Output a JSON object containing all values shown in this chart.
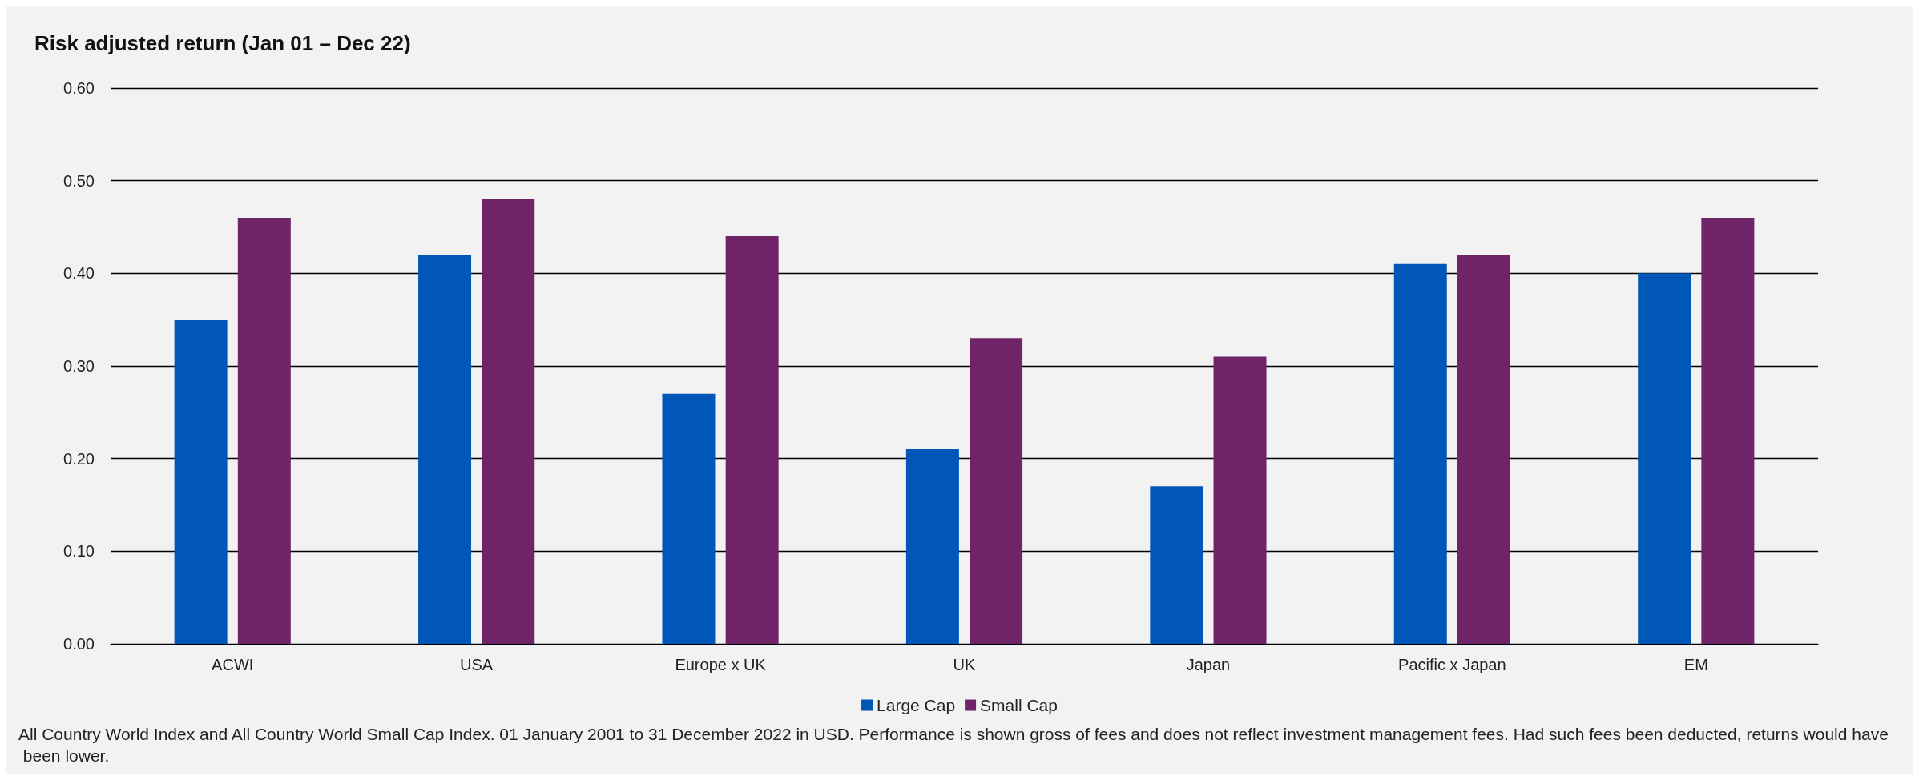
{
  "chart_data": {
    "type": "bar",
    "title": "Risk adjusted return (Jan 01 – Dec 22)",
    "categories": [
      "ACWI",
      "USA",
      "Europe x UK",
      "UK",
      "Japan",
      "Pacific x Japan",
      "EM"
    ],
    "series": [
      {
        "name": "Large Cap",
        "color": "#0057b8",
        "values": [
          0.35,
          0.42,
          0.27,
          0.21,
          0.17,
          0.41,
          0.4
        ]
      },
      {
        "name": "Small Cap",
        "color": "#6f2369",
        "values": [
          0.46,
          0.48,
          0.44,
          0.33,
          0.31,
          0.42,
          0.46
        ]
      }
    ],
    "ylim": [
      0,
      0.6
    ],
    "yticks": [
      {
        "value": 0,
        "label": "0.00"
      },
      {
        "value": 0.1,
        "label": "0.10"
      },
      {
        "value": 0.2,
        "label": "0.20"
      },
      {
        "value": 0.3,
        "label": "0.30"
      },
      {
        "value": 0.4,
        "label": "0.40"
      },
      {
        "value": 0.5,
        "label": "0.50"
      },
      {
        "value": 0.6,
        "label": "0.60"
      }
    ],
    "grid": "y",
    "legend": "bottom",
    "annotations": [
      "All Country World Index and All Country World Small Cap Index. 01 January 2001 to 31 December 2022 in USD. Performance is shown gross of fees and does not reflect investment management fees. Had such fees been deducted, returns would have been lower."
    ]
  }
}
